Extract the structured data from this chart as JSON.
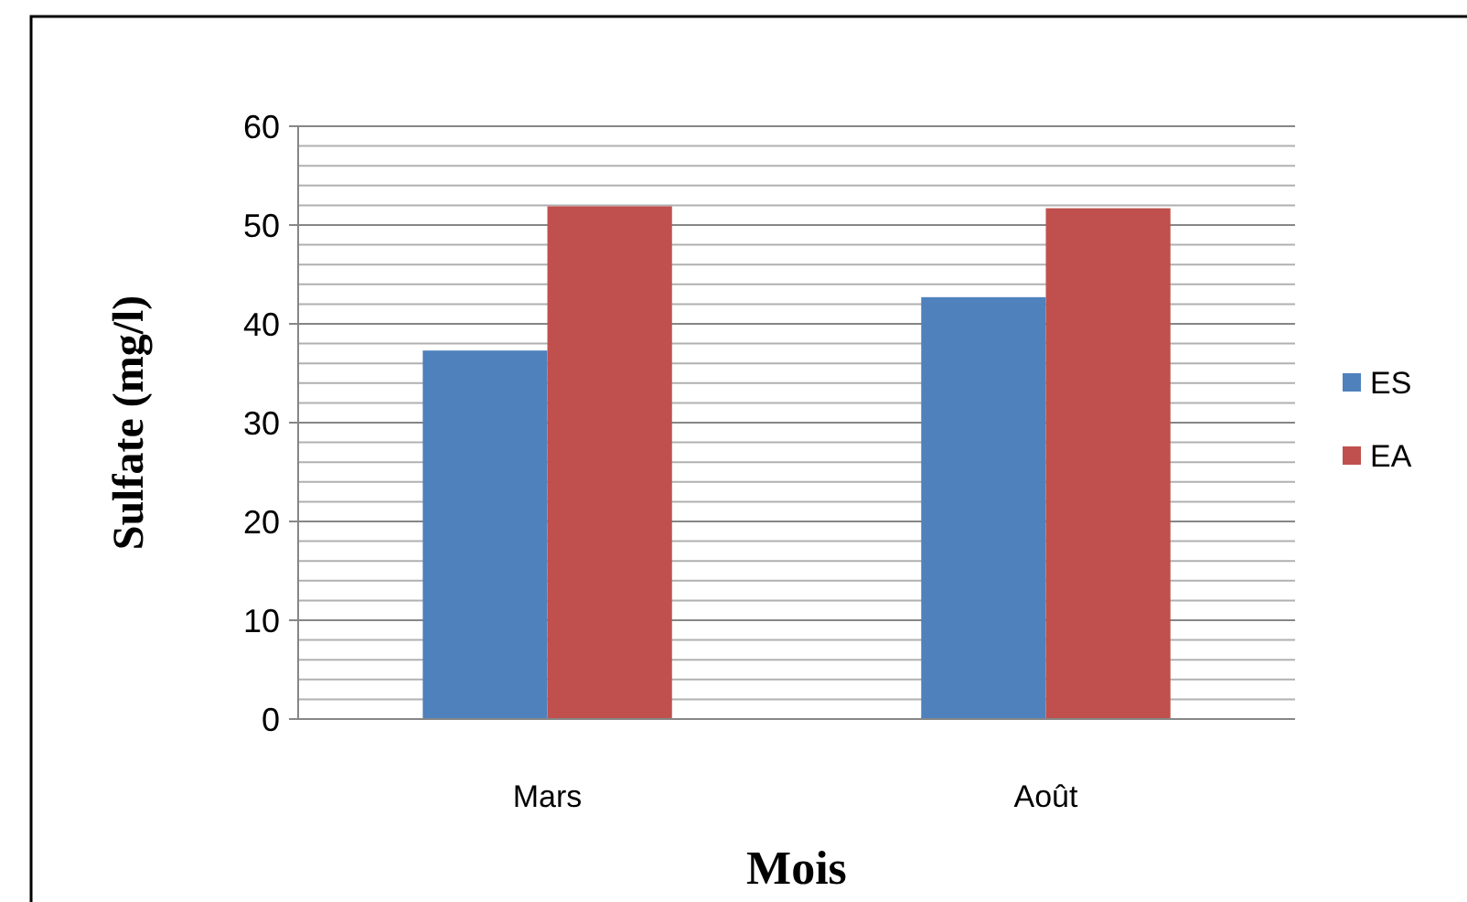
{
  "chart_data": {
    "type": "bar",
    "xlabel": "Mois",
    "ylabel": "Sulfate (mg/l)",
    "categories": [
      "Mars",
      "Août"
    ],
    "series": [
      {
        "name": "ES",
        "color": "#4f81bd",
        "values": [
          37.3,
          42.7
        ]
      },
      {
        "name": "EA",
        "color": "#c0504d",
        "values": [
          51.9,
          51.7
        ]
      }
    ],
    "ylim": [
      0,
      60
    ],
    "yticks": [
      0,
      {
        "value": 2,
        "label": null
      },
      {
        "value": 4,
        "label": null
      },
      {
        "value": 6,
        "label": null
      },
      {
        "value": 8,
        "label": null
      },
      10,
      {
        "value": 12,
        "label": null
      },
      {
        "value": 14,
        "label": null
      },
      {
        "value": 16,
        "label": null
      },
      {
        "value": 18,
        "label": null
      },
      20,
      {
        "value": 22,
        "label": null
      },
      {
        "value": 24,
        "label": null
      },
      {
        "value": 26,
        "label": null
      },
      {
        "value": 28,
        "label": null
      },
      30,
      {
        "value": 32,
        "label": null
      },
      {
        "value": 34,
        "label": null
      },
      {
        "value": 36,
        "label": null
      },
      {
        "value": 38,
        "label": null
      },
      40,
      {
        "value": 42,
        "label": null
      },
      {
        "value": 44,
        "label": null
      },
      {
        "value": 46,
        "label": null
      },
      {
        "value": 48,
        "label": null
      },
      50,
      {
        "value": 52,
        "label": null
      },
      {
        "value": 54,
        "label": null
      },
      {
        "value": 56,
        "label": null
      },
      {
        "value": 58,
        "label": null
      },
      60
    ],
    "grid": true,
    "legend": "right"
  }
}
